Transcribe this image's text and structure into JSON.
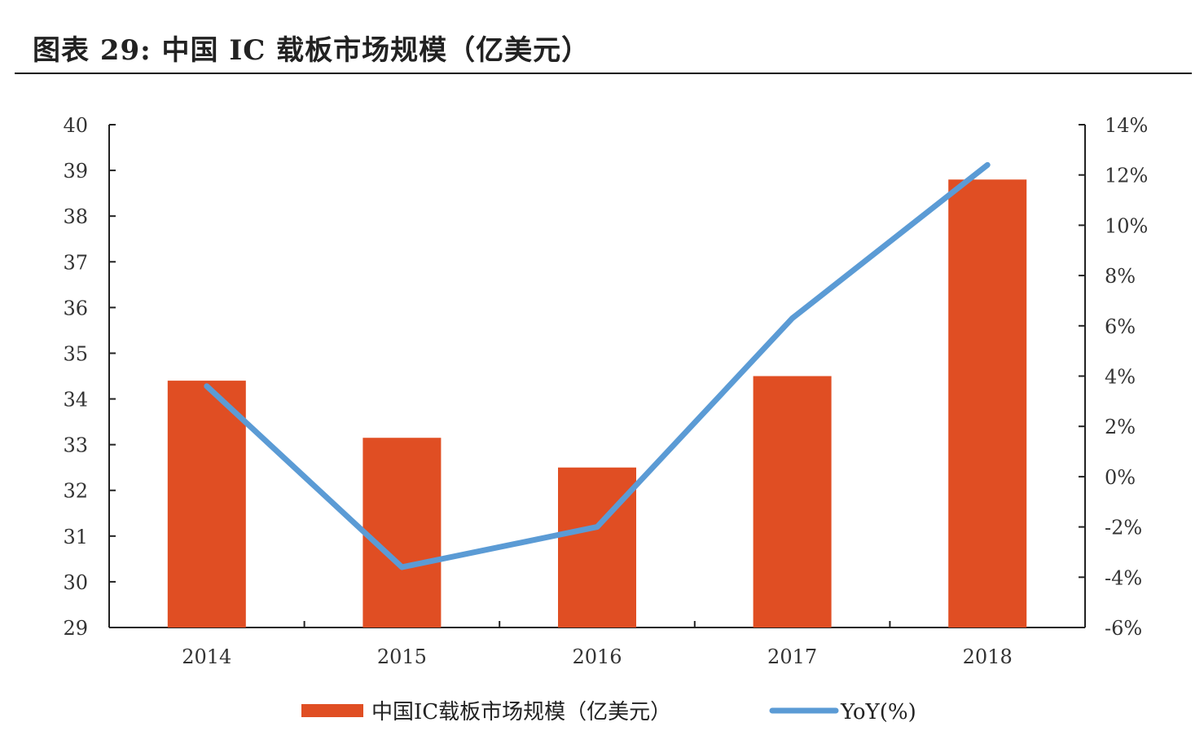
{
  "figure": {
    "title": "图表 29: 中国 IC 载板市场规模（亿美元）"
  },
  "chart_data": {
    "type": "bar",
    "categories": [
      "2014",
      "2015",
      "2016",
      "2017",
      "2018"
    ],
    "series": [
      {
        "name": "中国IC载板市场规模（亿美元）",
        "type": "bar",
        "axis": "left",
        "color": "#E04E23",
        "values": [
          34.4,
          33.15,
          32.5,
          34.5,
          38.8
        ]
      },
      {
        "name": "YoY(%)",
        "type": "line",
        "axis": "right",
        "color": "#5B9BD5",
        "values": [
          3.6,
          -3.6,
          -2.0,
          6.3,
          12.4
        ]
      }
    ],
    "y_left": {
      "ylim": [
        29,
        40
      ],
      "ticks": [
        "29",
        "30",
        "31",
        "32",
        "33",
        "34",
        "35",
        "36",
        "37",
        "38",
        "39",
        "40"
      ]
    },
    "y_right": {
      "ylim": [
        -6,
        14
      ],
      "ticks": [
        "-6%",
        "-4%",
        "-2%",
        "0%",
        "2%",
        "4%",
        "6%",
        "8%",
        "10%",
        "12%",
        "14%"
      ]
    },
    "grid": false,
    "legend_position": "bottom"
  }
}
